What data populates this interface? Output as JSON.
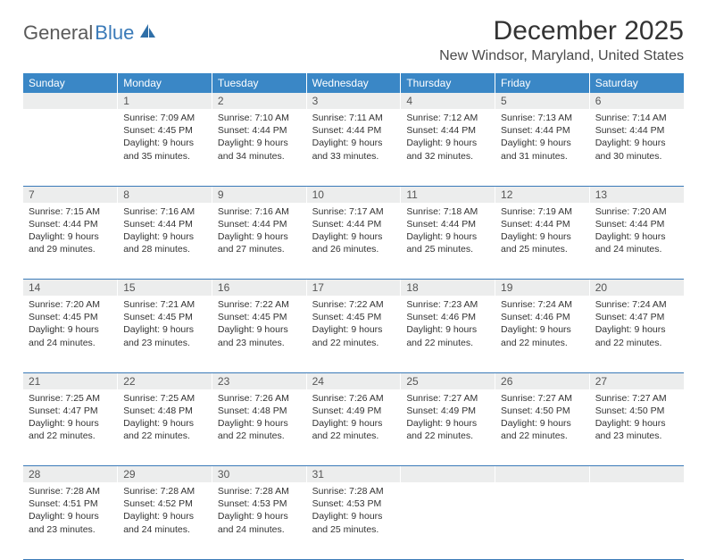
{
  "logo": {
    "part1": "General",
    "part2": "Blue"
  },
  "title": "December 2025",
  "location": "New Windsor, Maryland, United States",
  "colors": {
    "header_bg": "#3a87c6",
    "header_text": "#ffffff",
    "daynum_bg": "#eceded",
    "border": "#3a7ab8",
    "logo_gray": "#5a5a5a",
    "logo_blue": "#3a7ab8"
  },
  "weekdays": [
    "Sunday",
    "Monday",
    "Tuesday",
    "Wednesday",
    "Thursday",
    "Friday",
    "Saturday"
  ],
  "weeks": [
    {
      "nums": [
        "",
        "1",
        "2",
        "3",
        "4",
        "5",
        "6"
      ],
      "cells": [
        null,
        {
          "sunrise": "Sunrise: 7:09 AM",
          "sunset": "Sunset: 4:45 PM",
          "d1": "Daylight: 9 hours",
          "d2": "and 35 minutes."
        },
        {
          "sunrise": "Sunrise: 7:10 AM",
          "sunset": "Sunset: 4:44 PM",
          "d1": "Daylight: 9 hours",
          "d2": "and 34 minutes."
        },
        {
          "sunrise": "Sunrise: 7:11 AM",
          "sunset": "Sunset: 4:44 PM",
          "d1": "Daylight: 9 hours",
          "d2": "and 33 minutes."
        },
        {
          "sunrise": "Sunrise: 7:12 AM",
          "sunset": "Sunset: 4:44 PM",
          "d1": "Daylight: 9 hours",
          "d2": "and 32 minutes."
        },
        {
          "sunrise": "Sunrise: 7:13 AM",
          "sunset": "Sunset: 4:44 PM",
          "d1": "Daylight: 9 hours",
          "d2": "and 31 minutes."
        },
        {
          "sunrise": "Sunrise: 7:14 AM",
          "sunset": "Sunset: 4:44 PM",
          "d1": "Daylight: 9 hours",
          "d2": "and 30 minutes."
        }
      ]
    },
    {
      "nums": [
        "7",
        "8",
        "9",
        "10",
        "11",
        "12",
        "13"
      ],
      "cells": [
        {
          "sunrise": "Sunrise: 7:15 AM",
          "sunset": "Sunset: 4:44 PM",
          "d1": "Daylight: 9 hours",
          "d2": "and 29 minutes."
        },
        {
          "sunrise": "Sunrise: 7:16 AM",
          "sunset": "Sunset: 4:44 PM",
          "d1": "Daylight: 9 hours",
          "d2": "and 28 minutes."
        },
        {
          "sunrise": "Sunrise: 7:16 AM",
          "sunset": "Sunset: 4:44 PM",
          "d1": "Daylight: 9 hours",
          "d2": "and 27 minutes."
        },
        {
          "sunrise": "Sunrise: 7:17 AM",
          "sunset": "Sunset: 4:44 PM",
          "d1": "Daylight: 9 hours",
          "d2": "and 26 minutes."
        },
        {
          "sunrise": "Sunrise: 7:18 AM",
          "sunset": "Sunset: 4:44 PM",
          "d1": "Daylight: 9 hours",
          "d2": "and 25 minutes."
        },
        {
          "sunrise": "Sunrise: 7:19 AM",
          "sunset": "Sunset: 4:44 PM",
          "d1": "Daylight: 9 hours",
          "d2": "and 25 minutes."
        },
        {
          "sunrise": "Sunrise: 7:20 AM",
          "sunset": "Sunset: 4:44 PM",
          "d1": "Daylight: 9 hours",
          "d2": "and 24 minutes."
        }
      ]
    },
    {
      "nums": [
        "14",
        "15",
        "16",
        "17",
        "18",
        "19",
        "20"
      ],
      "cells": [
        {
          "sunrise": "Sunrise: 7:20 AM",
          "sunset": "Sunset: 4:45 PM",
          "d1": "Daylight: 9 hours",
          "d2": "and 24 minutes."
        },
        {
          "sunrise": "Sunrise: 7:21 AM",
          "sunset": "Sunset: 4:45 PM",
          "d1": "Daylight: 9 hours",
          "d2": "and 23 minutes."
        },
        {
          "sunrise": "Sunrise: 7:22 AM",
          "sunset": "Sunset: 4:45 PM",
          "d1": "Daylight: 9 hours",
          "d2": "and 23 minutes."
        },
        {
          "sunrise": "Sunrise: 7:22 AM",
          "sunset": "Sunset: 4:45 PM",
          "d1": "Daylight: 9 hours",
          "d2": "and 22 minutes."
        },
        {
          "sunrise": "Sunrise: 7:23 AM",
          "sunset": "Sunset: 4:46 PM",
          "d1": "Daylight: 9 hours",
          "d2": "and 22 minutes."
        },
        {
          "sunrise": "Sunrise: 7:24 AM",
          "sunset": "Sunset: 4:46 PM",
          "d1": "Daylight: 9 hours",
          "d2": "and 22 minutes."
        },
        {
          "sunrise": "Sunrise: 7:24 AM",
          "sunset": "Sunset: 4:47 PM",
          "d1": "Daylight: 9 hours",
          "d2": "and 22 minutes."
        }
      ]
    },
    {
      "nums": [
        "21",
        "22",
        "23",
        "24",
        "25",
        "26",
        "27"
      ],
      "cells": [
        {
          "sunrise": "Sunrise: 7:25 AM",
          "sunset": "Sunset: 4:47 PM",
          "d1": "Daylight: 9 hours",
          "d2": "and 22 minutes."
        },
        {
          "sunrise": "Sunrise: 7:25 AM",
          "sunset": "Sunset: 4:48 PM",
          "d1": "Daylight: 9 hours",
          "d2": "and 22 minutes."
        },
        {
          "sunrise": "Sunrise: 7:26 AM",
          "sunset": "Sunset: 4:48 PM",
          "d1": "Daylight: 9 hours",
          "d2": "and 22 minutes."
        },
        {
          "sunrise": "Sunrise: 7:26 AM",
          "sunset": "Sunset: 4:49 PM",
          "d1": "Daylight: 9 hours",
          "d2": "and 22 minutes."
        },
        {
          "sunrise": "Sunrise: 7:27 AM",
          "sunset": "Sunset: 4:49 PM",
          "d1": "Daylight: 9 hours",
          "d2": "and 22 minutes."
        },
        {
          "sunrise": "Sunrise: 7:27 AM",
          "sunset": "Sunset: 4:50 PM",
          "d1": "Daylight: 9 hours",
          "d2": "and 22 minutes."
        },
        {
          "sunrise": "Sunrise: 7:27 AM",
          "sunset": "Sunset: 4:50 PM",
          "d1": "Daylight: 9 hours",
          "d2": "and 23 minutes."
        }
      ]
    },
    {
      "nums": [
        "28",
        "29",
        "30",
        "31",
        "",
        "",
        ""
      ],
      "cells": [
        {
          "sunrise": "Sunrise: 7:28 AM",
          "sunset": "Sunset: 4:51 PM",
          "d1": "Daylight: 9 hours",
          "d2": "and 23 minutes."
        },
        {
          "sunrise": "Sunrise: 7:28 AM",
          "sunset": "Sunset: 4:52 PM",
          "d1": "Daylight: 9 hours",
          "d2": "and 24 minutes."
        },
        {
          "sunrise": "Sunrise: 7:28 AM",
          "sunset": "Sunset: 4:53 PM",
          "d1": "Daylight: 9 hours",
          "d2": "and 24 minutes."
        },
        {
          "sunrise": "Sunrise: 7:28 AM",
          "sunset": "Sunset: 4:53 PM",
          "d1": "Daylight: 9 hours",
          "d2": "and 25 minutes."
        },
        null,
        null,
        null
      ]
    }
  ]
}
